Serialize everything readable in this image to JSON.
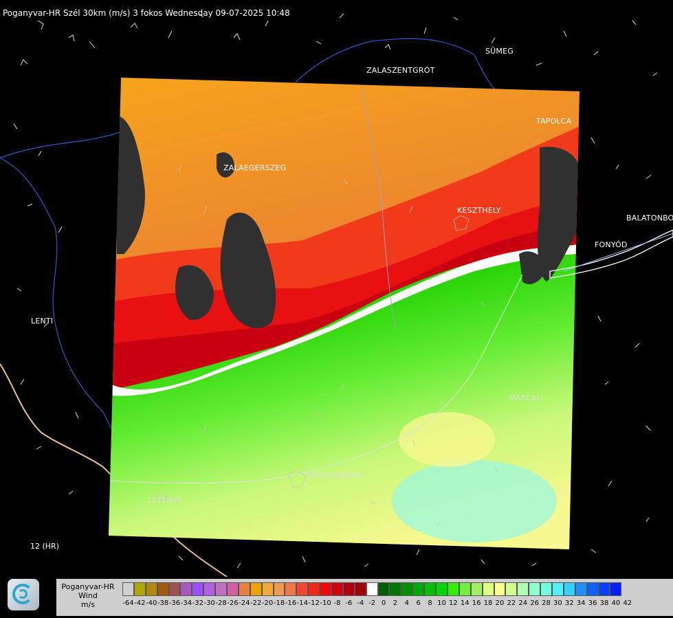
{
  "title": "Poganyvar-HR Szél 30km (m/s) 3 fokos Wednesday 09-07-2025 10:48",
  "towns": {
    "sumeg": "SÜMEG",
    "zalaszentgrot": "ZALASZENTGRÓT",
    "tapolca": "TAPOLCA",
    "zalaegerszeg": "ZALAEGERSZEG",
    "keszthely": "KESZTHELY",
    "balatonbo": "BALATONBO",
    "fonyod": "FONYÓD",
    "lenti": "LENTI",
    "marcali": "MARCALI",
    "nagykanizsa": "NAGYKANIZSA",
    "letenye": "LETENYE"
  },
  "roads": {
    "road_12": "12 (HR)"
  },
  "legend": {
    "line1": "Poganyvar-HR",
    "line2": "Wind",
    "line3": "m/s",
    "values": [
      "-64",
      "-42",
      "-40",
      "-38",
      "-36",
      "-34",
      "-32",
      "-30",
      "-28",
      "-26",
      "-24",
      "-22",
      "-20",
      "-18",
      "-16",
      "-14",
      "-12",
      "-10",
      "-8",
      "-6",
      "-4",
      "-2",
      "0",
      "2",
      "4",
      "6",
      "8",
      "10",
      "12",
      "14",
      "16",
      "18",
      "20",
      "22",
      "24",
      "26",
      "28",
      "30",
      "32",
      "34",
      "36",
      "38",
      "40",
      "42"
    ],
    "colors": [
      "#d0d0d0",
      "#b0a800",
      "#b08a10",
      "#a05a10",
      "#a05050",
      "#a858c0",
      "#9a50ff",
      "#b060e0",
      "#c070c0",
      "#d060a0",
      "#e88040",
      "#f0a000",
      "#f0a838",
      "#f09a50",
      "#f07848",
      "#f04830",
      "#f02818",
      "#f00808",
      "#d00010",
      "#b00010",
      "#a00008",
      "#ffffff",
      "#006000",
      "#007800",
      "#009000",
      "#00a800",
      "#00c000",
      "#00d800",
      "#30f000",
      "#70f040",
      "#a0f060",
      "#e0ff80",
      "#ffff90",
      "#d0ff90",
      "#b0ffb0",
      "#90ffd0",
      "#70ffe0",
      "#50f0ff",
      "#30d0ff",
      "#2090ff",
      "#1060ff",
      "#0040ff",
      "#0020ff"
    ]
  }
}
